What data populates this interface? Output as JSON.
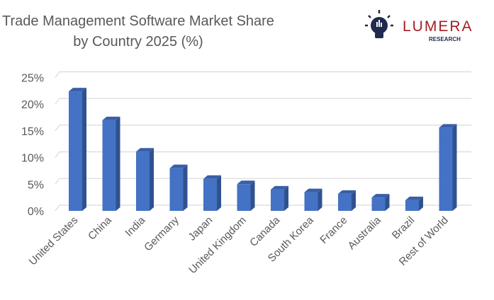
{
  "chart_data": {
    "type": "bar",
    "title_line1": "Trade Management Software Market Share",
    "title_line2": "by Country 2025 (%)",
    "categories": [
      "United States",
      "China",
      "India",
      "Germany",
      "Japan",
      "United Kingdom",
      "Canada",
      "South Korea",
      "France",
      "Australia",
      "Brazil",
      "Rest of World"
    ],
    "values": [
      22.4,
      17.0,
      11.1,
      8.0,
      6.0,
      5.0,
      4.0,
      3.5,
      3.2,
      2.5,
      2.0,
      15.6
    ],
    "ylim": [
      0,
      25
    ],
    "yticks": [
      "0%",
      "5%",
      "10%",
      "15%",
      "20%",
      "25%"
    ],
    "grid": true,
    "xlabel": "",
    "ylabel": ""
  },
  "logo": {
    "name": "LUMERA",
    "sub": "RESEARCH"
  },
  "colors": {
    "bar_front": "#4472c4",
    "bar_side": "#2f528f",
    "bar_top": "#3a5fa8",
    "grid": "#d9d9d9",
    "text": "#595959",
    "logo_red": "#a31f24",
    "logo_navy": "#1f2a4d"
  }
}
